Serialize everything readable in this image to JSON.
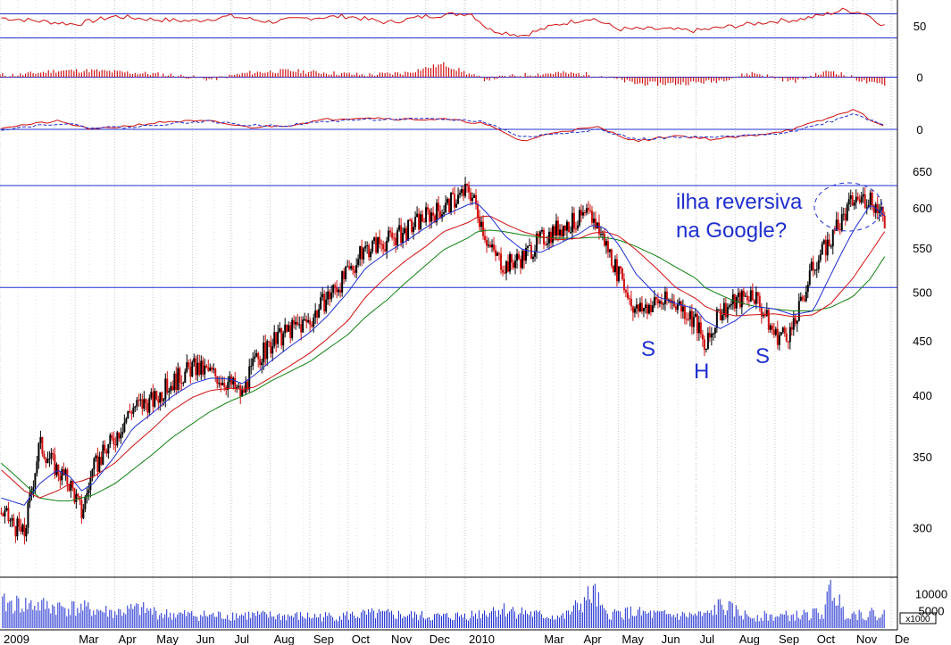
{
  "chart_data": [
    {
      "type": "line",
      "panel": "rsi",
      "y_ticks": [
        50
      ],
      "ylim": [
        20,
        80
      ],
      "reference_lines": [
        65,
        35
      ],
      "series": [
        {
          "color": "#d01010",
          "x": [
            "2009-01-02",
            "2009-02-01",
            "2009-03-01",
            "2009-04-01",
            "2009-05-01",
            "2009-06-01",
            "2009-07-01",
            "2009-08-01",
            "2009-09-01",
            "2009-10-01",
            "2009-11-01",
            "2009-12-01",
            "2010-01-05",
            "2010-01-20",
            "2010-02-15",
            "2010-03-15",
            "2010-04-10",
            "2010-05-01",
            "2010-06-01",
            "2010-07-01",
            "2010-08-01",
            "2010-09-01",
            "2010-09-20",
            "2010-10-10",
            "2010-10-25",
            "2010-11-10",
            "2010-11-26"
          ],
          "values": [
            60,
            56,
            52,
            62,
            58,
            56,
            62,
            55,
            60,
            62,
            54,
            62,
            66,
            45,
            38,
            52,
            60,
            46,
            46,
            44,
            50,
            56,
            58,
            64,
            70,
            66,
            50
          ]
        }
      ]
    },
    {
      "type": "bar",
      "panel": "histogram",
      "y_ticks": [
        0
      ],
      "ylim": [
        -10,
        10
      ],
      "series": [
        {
          "color": "#d01010",
          "x": [
            "2009-01-15",
            "2009-02-15",
            "2009-03-15",
            "2009-04-15",
            "2009-05-15",
            "2009-06-15",
            "2009-07-15",
            "2009-08-15",
            "2009-09-15",
            "2009-10-15",
            "2009-11-15",
            "2009-12-15",
            "2010-01-15",
            "2010-02-15",
            "2010-03-15",
            "2010-04-15",
            "2010-05-15",
            "2010-06-15",
            "2010-07-15",
            "2010-08-15",
            "2010-09-15",
            "2010-10-15",
            "2010-11-15"
          ],
          "values": [
            1,
            3,
            3,
            2,
            1,
            -1,
            2,
            3,
            2,
            1,
            2,
            6,
            -1,
            1,
            2,
            1,
            -3,
            -3,
            -2,
            2,
            -2,
            3,
            -3
          ]
        }
      ]
    },
    {
      "type": "line",
      "panel": "macd",
      "y_ticks": [
        0
      ],
      "ylim": [
        -12,
        12
      ],
      "series": [
        {
          "color": "#d01010",
          "x": [
            "2009-01-02",
            "2009-02-15",
            "2009-03-15",
            "2009-04-15",
            "2009-05-15",
            "2009-06-15",
            "2009-07-15",
            "2009-08-15",
            "2009-09-15",
            "2009-10-15",
            "2009-11-15",
            "2009-12-15",
            "2010-01-15",
            "2010-02-15",
            "2010-03-15",
            "2010-04-15",
            "2010-05-15",
            "2010-06-15",
            "2010-07-15",
            "2010-08-15",
            "2010-09-15",
            "2010-10-15",
            "2010-11-01",
            "2010-11-26"
          ],
          "values": [
            1,
            4,
            0,
            2,
            4,
            4,
            1,
            2,
            5,
            6,
            5,
            5,
            3,
            -6,
            -1,
            1,
            -6,
            -3,
            -5,
            -3,
            0,
            6,
            10,
            1
          ]
        },
        {
          "color": "#1f2fd0",
          "dash": true,
          "x": [
            "2009-01-02",
            "2009-02-15",
            "2009-03-15",
            "2009-04-15",
            "2009-05-15",
            "2009-06-15",
            "2009-07-15",
            "2009-08-15",
            "2009-09-15",
            "2009-10-15",
            "2009-11-15",
            "2009-12-15",
            "2010-01-15",
            "2010-02-15",
            "2010-03-15",
            "2010-04-15",
            "2010-05-15",
            "2010-06-15",
            "2010-07-15",
            "2010-08-15",
            "2010-09-15",
            "2010-10-15",
            "2010-11-01",
            "2010-11-26"
          ],
          "values": [
            0,
            3,
            1,
            1,
            3,
            4,
            2,
            2,
            4,
            5,
            5,
            5,
            4,
            -4,
            -2,
            0,
            -5,
            -4,
            -4,
            -3,
            -1,
            4,
            8,
            2
          ]
        }
      ]
    },
    {
      "type": "candlestick",
      "panel": "price",
      "y_ticks": [
        300,
        350,
        400,
        450,
        500,
        550,
        600,
        650
      ],
      "ylim": [
        270,
        665
      ],
      "y_scale": "log",
      "x_range": [
        "2009-01-01",
        "2010-12-06"
      ],
      "x_tick_labels": [
        "2009",
        "Mar",
        "Apr",
        "May",
        "Jun",
        "Jul",
        "Aug",
        "Sep",
        "Oct",
        "Nov",
        "Dec",
        "2010",
        "Mar",
        "Apr",
        "May",
        "Jun",
        "Jul",
        "Aug",
        "Sep",
        "Oct",
        "Nov",
        "De"
      ],
      "x_tick_dates": [
        "2009-01-01",
        "2009-03-01",
        "2009-04-01",
        "2009-05-01",
        "2009-06-01",
        "2009-07-01",
        "2009-08-01",
        "2009-09-01",
        "2009-10-01",
        "2009-11-01",
        "2009-12-01",
        "2010-01-01",
        "2010-03-01",
        "2010-04-01",
        "2010-05-01",
        "2010-06-01",
        "2010-07-01",
        "2010-08-01",
        "2010-09-01",
        "2010-10-01",
        "2010-11-01",
        "2010-12-01"
      ],
      "reference_lines": [
        630,
        505
      ],
      "price": {
        "x": [
          "2009-01-02",
          "2009-01-20",
          "2009-02-01",
          "2009-02-15",
          "2009-02-25",
          "2009-03-06",
          "2009-03-15",
          "2009-04-01",
          "2009-04-15",
          "2009-05-01",
          "2009-05-15",
          "2009-06-01",
          "2009-06-15",
          "2009-07-01",
          "2009-07-10",
          "2009-07-20",
          "2009-08-01",
          "2009-08-15",
          "2009-09-01",
          "2009-09-15",
          "2009-10-01",
          "2009-10-15",
          "2009-11-01",
          "2009-11-15",
          "2009-12-01",
          "2009-12-15",
          "2010-01-04",
          "2010-01-10",
          "2010-01-20",
          "2010-02-01",
          "2010-02-15",
          "2010-03-01",
          "2010-03-15",
          "2010-04-01",
          "2010-04-10",
          "2010-04-20",
          "2010-05-01",
          "2010-05-15",
          "2010-06-01",
          "2010-06-15",
          "2010-07-01",
          "2010-07-08",
          "2010-07-20",
          "2010-08-01",
          "2010-08-15",
          "2010-09-01",
          "2010-09-15",
          "2010-10-01",
          "2010-10-15",
          "2010-11-01",
          "2010-11-15",
          "2010-11-26"
        ],
        "values": [
          310,
          295,
          360,
          340,
          330,
          310,
          340,
          365,
          390,
          395,
          410,
          425,
          420,
          410,
          400,
          430,
          445,
          460,
          470,
          495,
          520,
          550,
          560,
          570,
          590,
          600,
          625,
          600,
          550,
          530,
          540,
          560,
          575,
          585,
          590,
          560,
          520,
          480,
          490,
          490,
          470,
          440,
          480,
          490,
          500,
          455,
          460,
          530,
          560,
          610,
          615,
          580
        ]
      },
      "ma_20": {
        "color": "#1f2fd0",
        "values": [
          320,
          315,
          330,
          340,
          335,
          325,
          330,
          350,
          372,
          385,
          398,
          410,
          415,
          414,
          410,
          418,
          430,
          443,
          458,
          475,
          500,
          527,
          545,
          558,
          575,
          590,
          605,
          607,
          590,
          565,
          548,
          545,
          555,
          568,
          578,
          575,
          555,
          520,
          495,
          488,
          482,
          470,
          462,
          470,
          485,
          482,
          476,
          480,
          520,
          570,
          605,
          590
        ]
      },
      "ma_50": {
        "color": "#d01010",
        "values": [
          340,
          325,
          320,
          325,
          330,
          332,
          335,
          345,
          358,
          372,
          386,
          398,
          404,
          406,
          405,
          407,
          415,
          425,
          438,
          452,
          470,
          495,
          518,
          535,
          552,
          570,
          582,
          588,
          590,
          580,
          570,
          564,
          560,
          562,
          568,
          570,
          565,
          548,
          525,
          505,
          493,
          485,
          478,
          475,
          476,
          477,
          474,
          476,
          488,
          515,
          545,
          570
        ]
      },
      "ma_200": {
        "color": "#108010",
        "values": [
          345,
          330,
          320,
          318,
          318,
          320,
          322,
          330,
          340,
          352,
          364,
          376,
          386,
          395,
          399,
          404,
          412,
          420,
          430,
          442,
          456,
          474,
          492,
          510,
          530,
          548,
          563,
          570,
          572,
          570,
          566,
          563,
          562,
          562,
          563,
          563,
          560,
          552,
          540,
          528,
          515,
          505,
          497,
          490,
          485,
          482,
          480,
          480,
          484,
          495,
          515,
          540
        ]
      },
      "annotations": {
        "line1": "ilha reversiva",
        "line2": "na Google?",
        "left_shoulder": "S",
        "head": "H",
        "right_shoulder": "S"
      }
    },
    {
      "type": "bar",
      "panel": "volume",
      "unit_label": "x1000",
      "y_ticks": [
        5000,
        10000
      ],
      "y_tick_labels": [
        "5000",
        "10000"
      ],
      "ylim": [
        0,
        14000
      ],
      "series": [
        {
          "color": "#1f2fd0",
          "x": [
            "2009-01-10",
            "2009-02-01",
            "2009-02-20",
            "2009-03-10",
            "2009-04-01",
            "2009-04-20",
            "2009-05-10",
            "2009-06-01",
            "2009-06-20",
            "2009-07-10",
            "2009-08-01",
            "2009-08-20",
            "2009-09-10",
            "2009-10-01",
            "2009-10-20",
            "2009-11-10",
            "2009-12-01",
            "2009-12-20",
            "2010-01-10",
            "2010-01-25",
            "2010-02-10",
            "2010-03-01",
            "2010-03-20",
            "2010-04-12",
            "2010-04-20",
            "2010-05-10",
            "2010-06-01",
            "2010-06-20",
            "2010-07-10",
            "2010-07-20",
            "2010-08-10",
            "2010-09-01",
            "2010-09-20",
            "2010-10-10",
            "2010-10-15",
            "2010-10-25",
            "2010-11-10",
            "2010-11-26"
          ],
          "values": [
            7000,
            6500,
            6000,
            5500,
            4500,
            5500,
            4000,
            3800,
            3600,
            3800,
            3500,
            3400,
            3300,
            3600,
            4000,
            3800,
            3400,
            3300,
            4000,
            5500,
            5000,
            3600,
            3300,
            10000,
            4000,
            4500,
            3800,
            3600,
            3800,
            6500,
            3500,
            3400,
            3600,
            4500,
            12500,
            4500,
            4000,
            4200
          ]
        }
      ]
    }
  ]
}
